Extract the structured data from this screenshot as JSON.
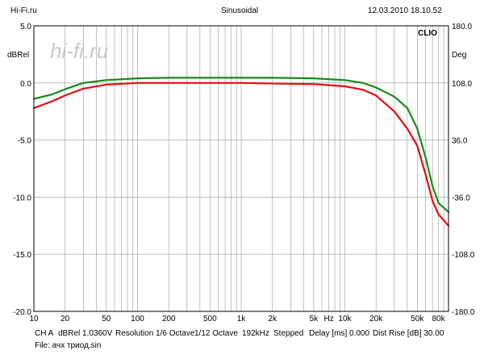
{
  "header": {
    "site": "Hi-Fi.ru",
    "mode": "Sinusoidal",
    "datetime": "12.03.2010 18.10.52"
  },
  "watermark": "hi-fi.ru",
  "brand": "CLIO",
  "footer": {
    "channel": "CH A",
    "reference": "dBRel 1.0360V",
    "resolution": "Resolution 1/6 Octave",
    "step": "1/12 Octave",
    "sample_rate": "192kHz",
    "sweep": "Stepped",
    "delay": "Delay [ms] 0.000",
    "dist_rise": "Dist Rise [dB] 30.00",
    "file": "File: ачх триод.sin"
  },
  "chart_data": {
    "type": "line",
    "x_scale": "log",
    "xlim": [
      10,
      100000
    ],
    "x_ticks": [
      {
        "value": 10,
        "label": "10"
      },
      {
        "value": 20,
        "label": "20"
      },
      {
        "value": 50,
        "label": "50"
      },
      {
        "value": 100,
        "label": "100"
      },
      {
        "value": 200,
        "label": "200"
      },
      {
        "value": 500,
        "label": "500"
      },
      {
        "value": 1000,
        "label": "1k"
      },
      {
        "value": 2000,
        "label": "2k"
      },
      {
        "value": 5000,
        "label": "5k"
      },
      {
        "value": 7000,
        "label": "Hz"
      },
      {
        "value": 10000,
        "label": "10k"
      },
      {
        "value": 20000,
        "label": "20k"
      },
      {
        "value": 50000,
        "label": "50k"
      },
      {
        "value": 80000,
        "label": "80k"
      }
    ],
    "ylabel_left": "dBRel",
    "ylim_left": [
      -20,
      5
    ],
    "y_ticks_left": [
      "5.0",
      "0.0",
      "-5.0",
      "-10.0",
      "-15.0",
      "-20.0"
    ],
    "ylabel_right": "Deg",
    "ylim_right": [
      -180,
      180
    ],
    "y_ticks_right": [
      "180.0",
      "108.0",
      "36.0",
      "-36.0",
      "-108.0",
      "-180.0"
    ],
    "grid": true,
    "colors": {
      "green": "#1a8a1a",
      "red": "#e01010",
      "grid": "#999999"
    },
    "series": [
      {
        "color": "green",
        "x": [
          10,
          15,
          20,
          30,
          50,
          100,
          200,
          500,
          1000,
          2000,
          5000,
          10000,
          15000,
          20000,
          30000,
          40000,
          50000,
          60000,
          70000,
          80000,
          100000
        ],
        "y": [
          -1.4,
          -1.0,
          -0.55,
          0.0,
          0.25,
          0.4,
          0.45,
          0.45,
          0.45,
          0.45,
          0.4,
          0.25,
          0.0,
          -0.4,
          -1.2,
          -2.2,
          -4.0,
          -6.5,
          -9.0,
          -10.5,
          -11.3
        ]
      },
      {
        "color": "red",
        "x": [
          10,
          15,
          20,
          30,
          50,
          100,
          200,
          500,
          1000,
          2000,
          5000,
          10000,
          15000,
          20000,
          30000,
          40000,
          50000,
          60000,
          70000,
          80000,
          100000
        ],
        "y": [
          -2.2,
          -1.6,
          -1.1,
          -0.5,
          -0.15,
          0.0,
          0.0,
          0.0,
          0.0,
          -0.05,
          -0.1,
          -0.3,
          -0.6,
          -1.1,
          -2.5,
          -4.0,
          -5.5,
          -8.0,
          -10.3,
          -11.5,
          -12.5
        ]
      }
    ]
  }
}
